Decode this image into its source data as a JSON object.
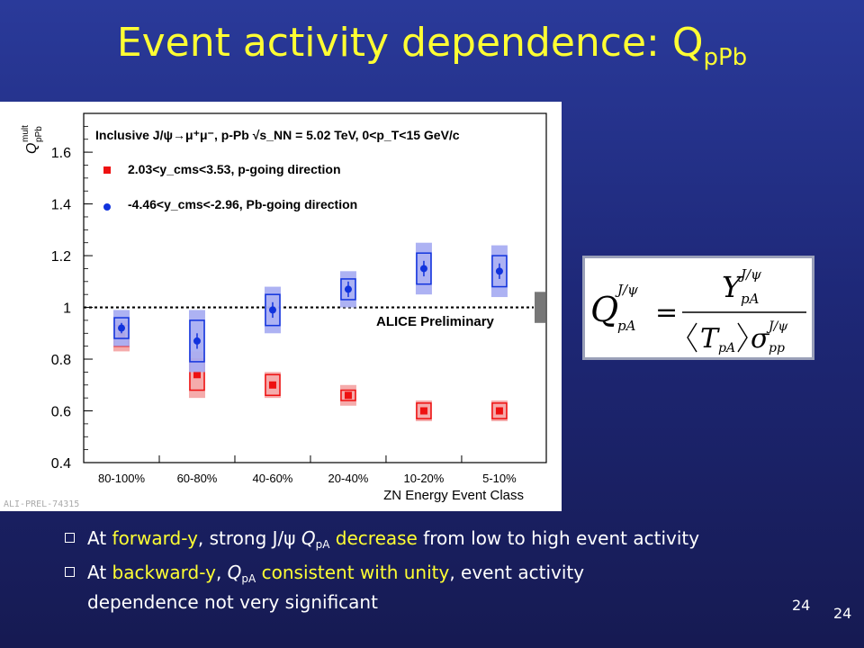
{
  "slide": {
    "title_main": "Event activity dependence: Q",
    "title_sub": "pPb",
    "page_number_a": "24",
    "page_number_b": "24"
  },
  "bullets": [
    {
      "pre": "At ",
      "hl1": "forward-y",
      "mid1": ", strong J/",
      "psi": "ψ",
      "q": "Q",
      "qsub": "pA",
      "hl2": "decrease",
      "post": " from low to high event activity"
    },
    {
      "pre": "At ",
      "hl1": "backward-y",
      "mid1": ", ",
      "q": "Q",
      "qsub": "pA",
      "hl2": "consistent with unity",
      "post": ", event activity",
      "post2": "dependence not very significant"
    }
  ],
  "formula": {
    "lhs": "Q",
    "lhs_sup": "J/ψ",
    "lhs_sub": "pA",
    "num": "Y",
    "num_sup": "J/ψ",
    "num_sub": "pA",
    "den_t": "T",
    "den_t_sub": "pA",
    "den_sigma": "σ",
    "den_sigma_sup": "J/ψ",
    "den_sigma_sub": "pp"
  },
  "colors": {
    "title": "#ffff33",
    "red": "#ee1111",
    "blue": "#1133dd",
    "red_fill": "#f4a6a6",
    "blue_fill": "#a9aef2"
  },
  "chart_data": {
    "type": "scatter",
    "categories": [
      "80-100%",
      "60-80%",
      "40-60%",
      "20-40%",
      "10-20%",
      "5-10%"
    ],
    "xlabel": "ZN Energy Event Class",
    "ylabel_main": "Q",
    "ylabel_sup": "mult",
    "ylabel_sub": "pPb",
    "ylim": [
      0.4,
      1.75
    ],
    "yticks": [
      "0.4",
      "0.6",
      "0.8",
      "1",
      "1.2",
      "1.4",
      "1.6"
    ],
    "reference_line": 1.0,
    "legend_header": "Inclusive J/ψ→μ⁺μ⁻, p-Pb √s_NN = 5.02 TeV, 0<p_T<15 GeV/c",
    "preliminary_label": "ALICE Preliminary",
    "watermark": "ALI-PREL-74315",
    "series": [
      {
        "name": "2.03<y_cms<3.53, p-going direction",
        "color": "#ee1111",
        "values": [
          0.89,
          0.74,
          0.7,
          0.66,
          0.6,
          0.6
        ],
        "stat_err": [
          0.01,
          0.01,
          0.01,
          0.01,
          0.01,
          0.01
        ],
        "uncorr_sys": [
          0.04,
          0.06,
          0.04,
          0.02,
          0.03,
          0.03
        ],
        "corr_sys": [
          0.06,
          0.09,
          0.05,
          0.04,
          0.04,
          0.04
        ]
      },
      {
        "name": "-4.46<y_cms<-2.96, Pb-going direction",
        "color": "#1133dd",
        "values": [
          0.92,
          0.87,
          0.99,
          1.07,
          1.15,
          1.14
        ],
        "stat_err": [
          0.02,
          0.03,
          0.03,
          0.03,
          0.03,
          0.03
        ],
        "uncorr_sys": [
          0.04,
          0.08,
          0.06,
          0.04,
          0.06,
          0.06
        ],
        "corr_sys": [
          0.07,
          0.12,
          0.09,
          0.07,
          0.1,
          0.1
        ]
      }
    ],
    "global_uncertainty": 0.06
  }
}
